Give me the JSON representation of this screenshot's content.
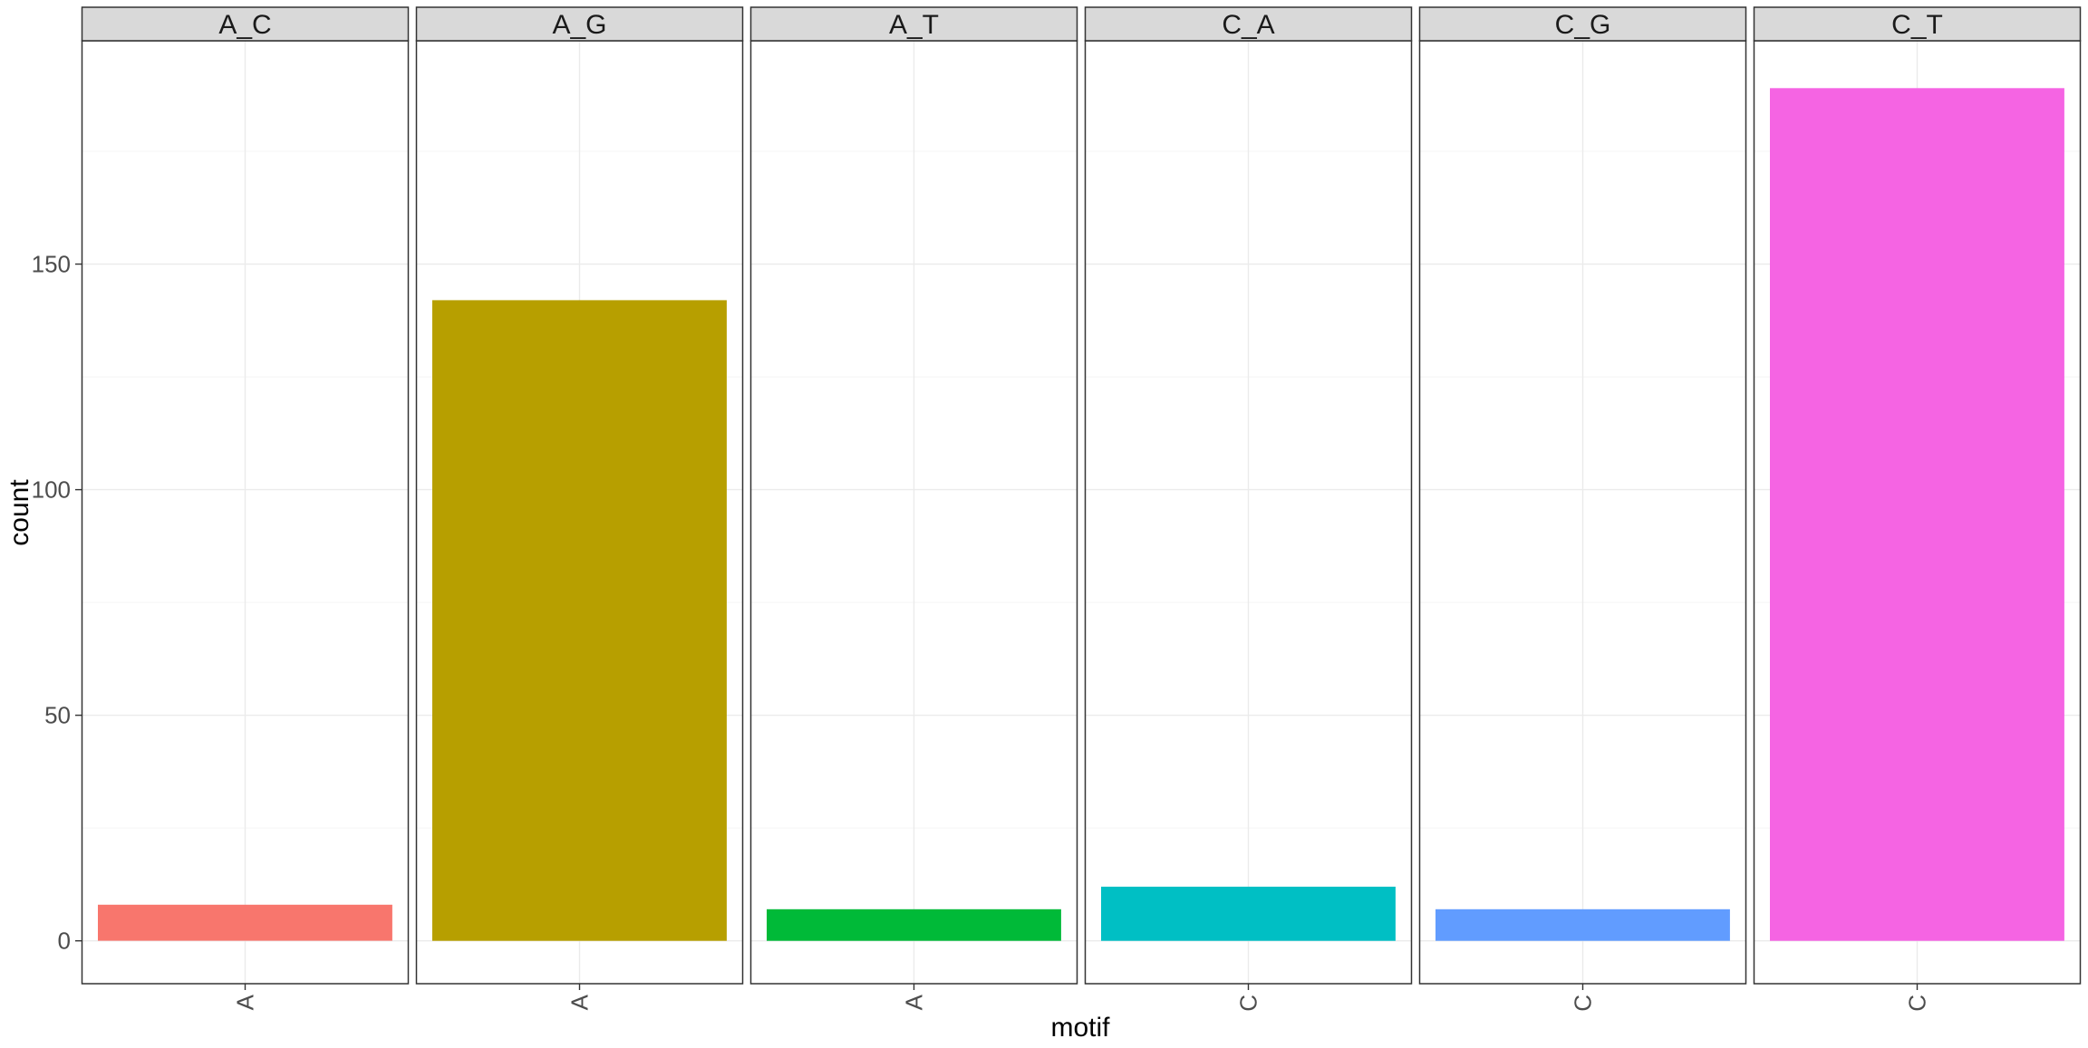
{
  "chart_data": {
    "type": "bar",
    "facet_layout": "single row of panels",
    "xlabel": "motif",
    "ylabel": "count",
    "ylim": [
      -9.5,
      199.5
    ],
    "y_ticks": [
      0,
      50,
      100,
      150
    ],
    "y_tick_labels": [
      "0",
      "50",
      "100",
      "150"
    ],
    "grid": true,
    "legend": "none",
    "panels": [
      {
        "strip": "A_C",
        "categories": [
          "A"
        ],
        "values": [
          8
        ],
        "color": "#F8766D"
      },
      {
        "strip": "A_G",
        "categories": [
          "A"
        ],
        "values": [
          142
        ],
        "color": "#B79F00"
      },
      {
        "strip": "A_T",
        "categories": [
          "A"
        ],
        "values": [
          7
        ],
        "color": "#00BA38"
      },
      {
        "strip": "C_A",
        "categories": [
          "C"
        ],
        "values": [
          12
        ],
        "color": "#00BFC4"
      },
      {
        "strip": "C_G",
        "categories": [
          "C"
        ],
        "values": [
          7
        ],
        "color": "#619CFF"
      },
      {
        "strip": "C_T",
        "categories": [
          "C"
        ],
        "values": [
          189
        ],
        "color": "#F564E3"
      }
    ],
    "colors": {
      "strip_fill": "#D9D9D9",
      "panel_border": "#333333",
      "grid_major": "#EBEBEB",
      "grid_minor": "#F5F5F5",
      "tick_label": "#4D4D4D",
      "axis_title": "#000000"
    }
  }
}
